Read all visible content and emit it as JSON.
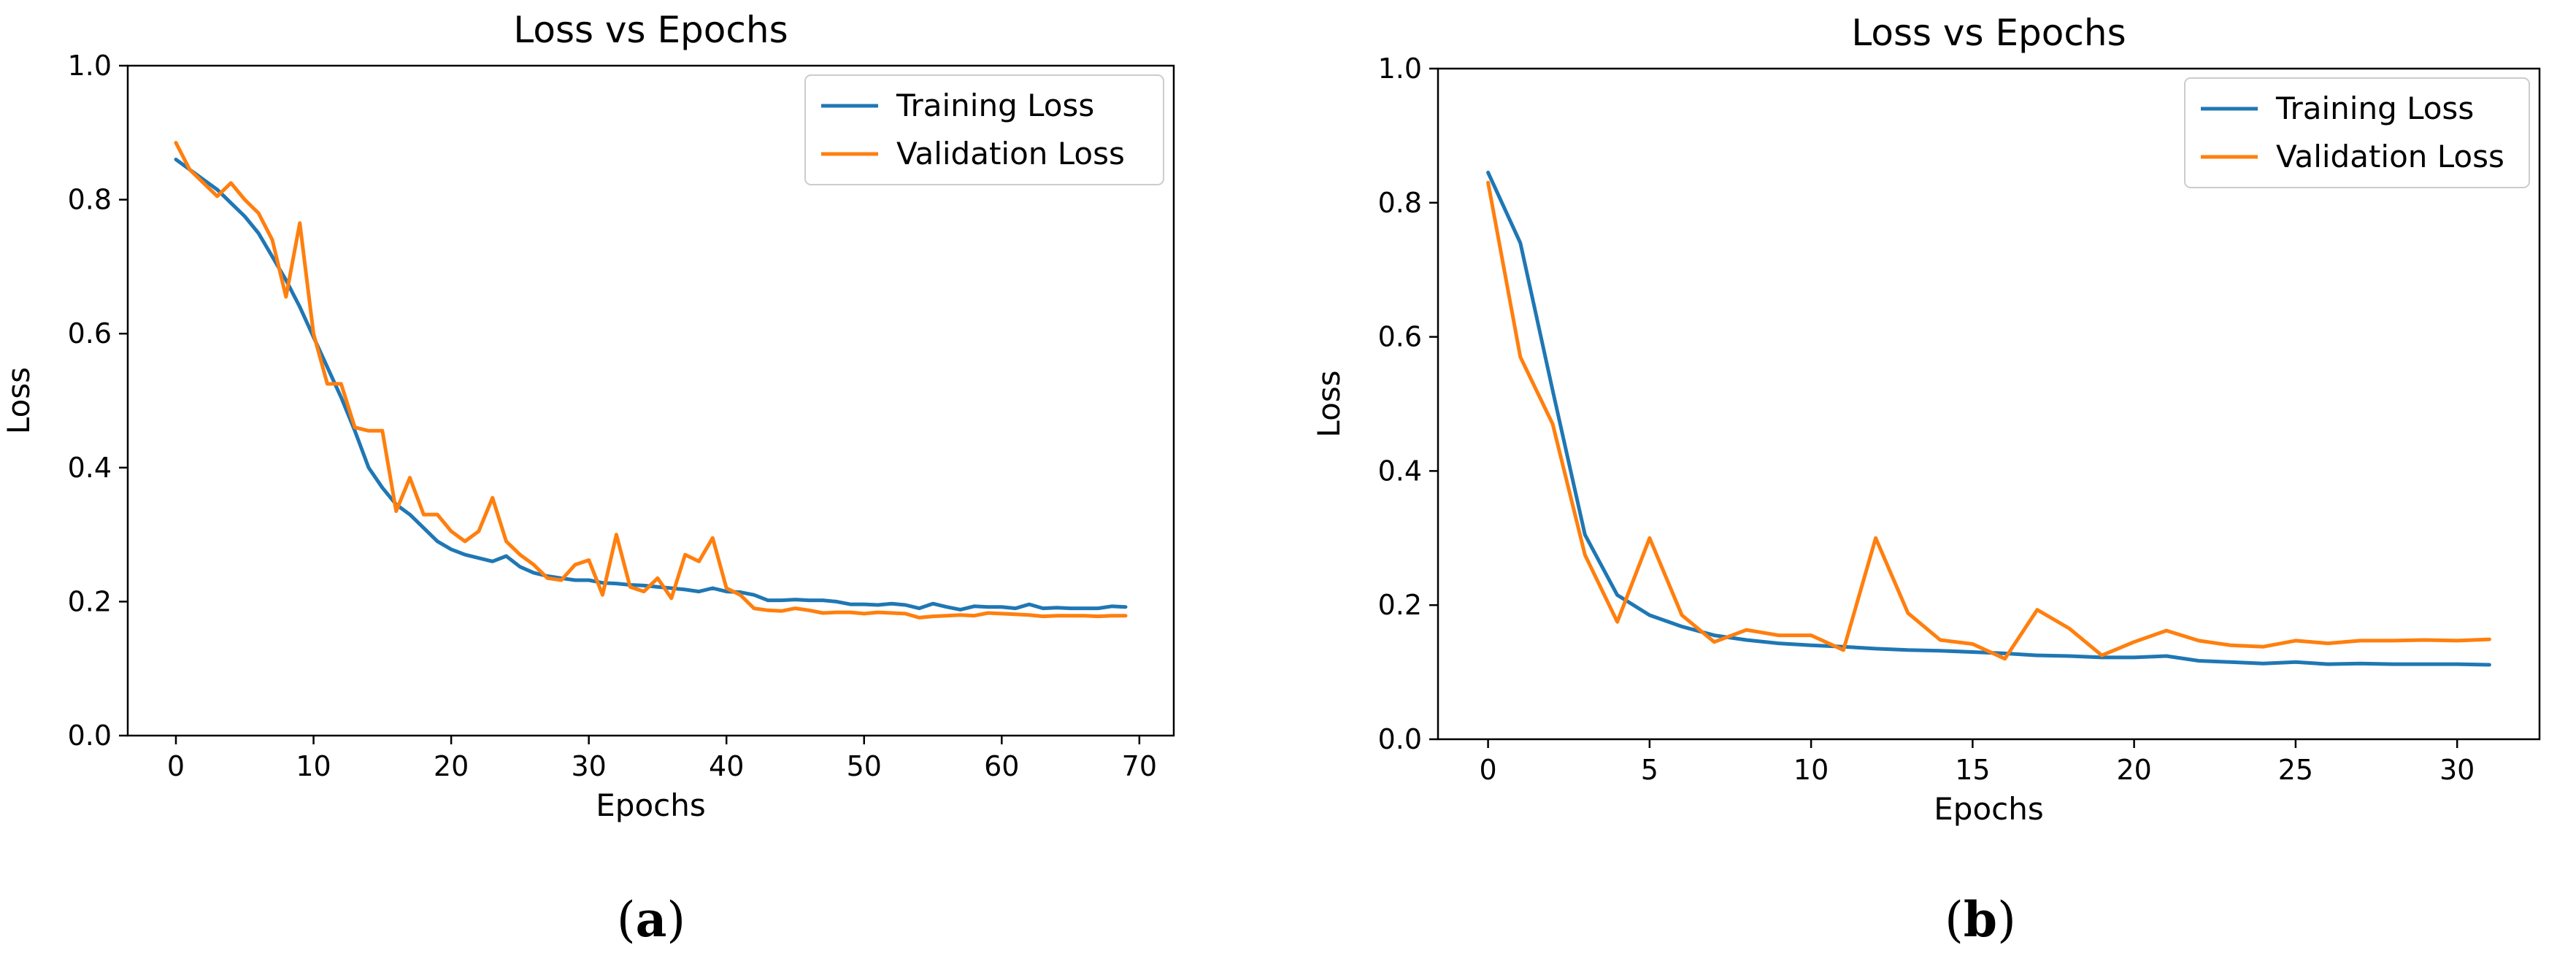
{
  "chart_data": [
    {
      "type": "line",
      "title": "Loss vs Epochs",
      "xlabel": "Epochs",
      "ylabel": "Loss",
      "xlim": [
        -3.5,
        72.5
      ],
      "ylim": [
        0,
        1
      ],
      "xticks": [
        "0",
        "10",
        "20",
        "30",
        "40",
        "50",
        "60",
        "70"
      ],
      "yticks": [
        "0.0",
        "0.2",
        "0.4",
        "0.6",
        "0.8",
        "1.0"
      ],
      "xtick_values": [
        0,
        10,
        20,
        30,
        40,
        50,
        60,
        70
      ],
      "ytick_values": [
        0,
        0.2,
        0.4,
        0.6,
        0.8,
        1.0
      ],
      "legend_position": "top-right",
      "caption_open": "(",
      "caption_letter": "a",
      "caption_close": ")",
      "series": [
        {
          "name": "Training Loss",
          "color": "#1f77b4",
          "values": [
            0.86,
            0.845,
            0.83,
            0.815,
            0.795,
            0.775,
            0.75,
            0.715,
            0.68,
            0.64,
            0.595,
            0.55,
            0.505,
            0.455,
            0.4,
            0.37,
            0.345,
            0.33,
            0.31,
            0.29,
            0.278,
            0.27,
            0.265,
            0.26,
            0.268,
            0.252,
            0.243,
            0.238,
            0.235,
            0.232,
            0.232,
            0.228,
            0.227,
            0.225,
            0.224,
            0.222,
            0.22,
            0.218,
            0.215,
            0.22,
            0.215,
            0.214,
            0.21,
            0.202,
            0.202,
            0.203,
            0.202,
            0.202,
            0.2,
            0.196,
            0.196,
            0.195,
            0.197,
            0.195,
            0.19,
            0.197,
            0.192,
            0.188,
            0.193,
            0.192,
            0.192,
            0.19,
            0.196,
            0.19,
            0.191,
            0.19,
            0.19,
            0.19,
            0.193,
            0.192
          ]
        },
        {
          "name": "Validation Loss",
          "color": "#ff7f0e",
          "values": [
            0.885,
            0.845,
            0.825,
            0.805,
            0.825,
            0.8,
            0.78,
            0.74,
            0.655,
            0.765,
            0.6,
            0.525,
            0.525,
            0.46,
            0.455,
            0.455,
            0.335,
            0.385,
            0.33,
            0.33,
            0.305,
            0.29,
            0.305,
            0.355,
            0.29,
            0.27,
            0.255,
            0.235,
            0.232,
            0.255,
            0.262,
            0.21,
            0.3,
            0.222,
            0.215,
            0.235,
            0.205,
            0.27,
            0.26,
            0.295,
            0.22,
            0.21,
            0.19,
            0.187,
            0.186,
            0.19,
            0.187,
            0.183,
            0.184,
            0.184,
            0.182,
            0.184,
            0.183,
            0.182,
            0.176,
            0.178,
            0.179,
            0.18,
            0.179,
            0.183,
            0.182,
            0.181,
            0.18,
            0.178,
            0.179,
            0.179,
            0.179,
            0.178,
            0.179,
            0.179
          ]
        }
      ]
    },
    {
      "type": "line",
      "title": "Loss vs Epochs",
      "xlabel": "Epochs",
      "ylabel": "Loss",
      "xlim": [
        -1.55,
        32.55
      ],
      "ylim": [
        0,
        1
      ],
      "xticks": [
        "0",
        "5",
        "10",
        "15",
        "20",
        "25",
        "30"
      ],
      "yticks": [
        "0.0",
        "0.2",
        "0.4",
        "0.6",
        "0.8",
        "1.0"
      ],
      "xtick_values": [
        0,
        5,
        10,
        15,
        20,
        25,
        30
      ],
      "ytick_values": [
        0,
        0.2,
        0.4,
        0.6,
        0.8,
        1.0
      ],
      "legend_position": "top-right",
      "caption_open": "(",
      "caption_letter": "b",
      "caption_close": ")",
      "series": [
        {
          "name": "Training Loss",
          "color": "#1f77b4",
          "values": [
            0.845,
            0.74,
            0.52,
            0.305,
            0.215,
            0.185,
            0.168,
            0.155,
            0.148,
            0.143,
            0.14,
            0.138,
            0.135,
            0.133,
            0.132,
            0.13,
            0.128,
            0.125,
            0.124,
            0.122,
            0.122,
            0.124,
            0.117,
            0.115,
            0.113,
            0.115,
            0.112,
            0.113,
            0.112,
            0.112,
            0.112,
            0.111
          ]
        },
        {
          "name": "Validation Loss",
          "color": "#ff7f0e",
          "values": [
            0.83,
            0.57,
            0.47,
            0.275,
            0.175,
            0.3,
            0.185,
            0.145,
            0.163,
            0.155,
            0.155,
            0.133,
            0.3,
            0.188,
            0.148,
            0.142,
            0.12,
            0.193,
            0.165,
            0.125,
            0.145,
            0.162,
            0.147,
            0.14,
            0.138,
            0.147,
            0.143,
            0.147,
            0.147,
            0.148,
            0.147,
            0.149
          ]
        }
      ]
    }
  ]
}
